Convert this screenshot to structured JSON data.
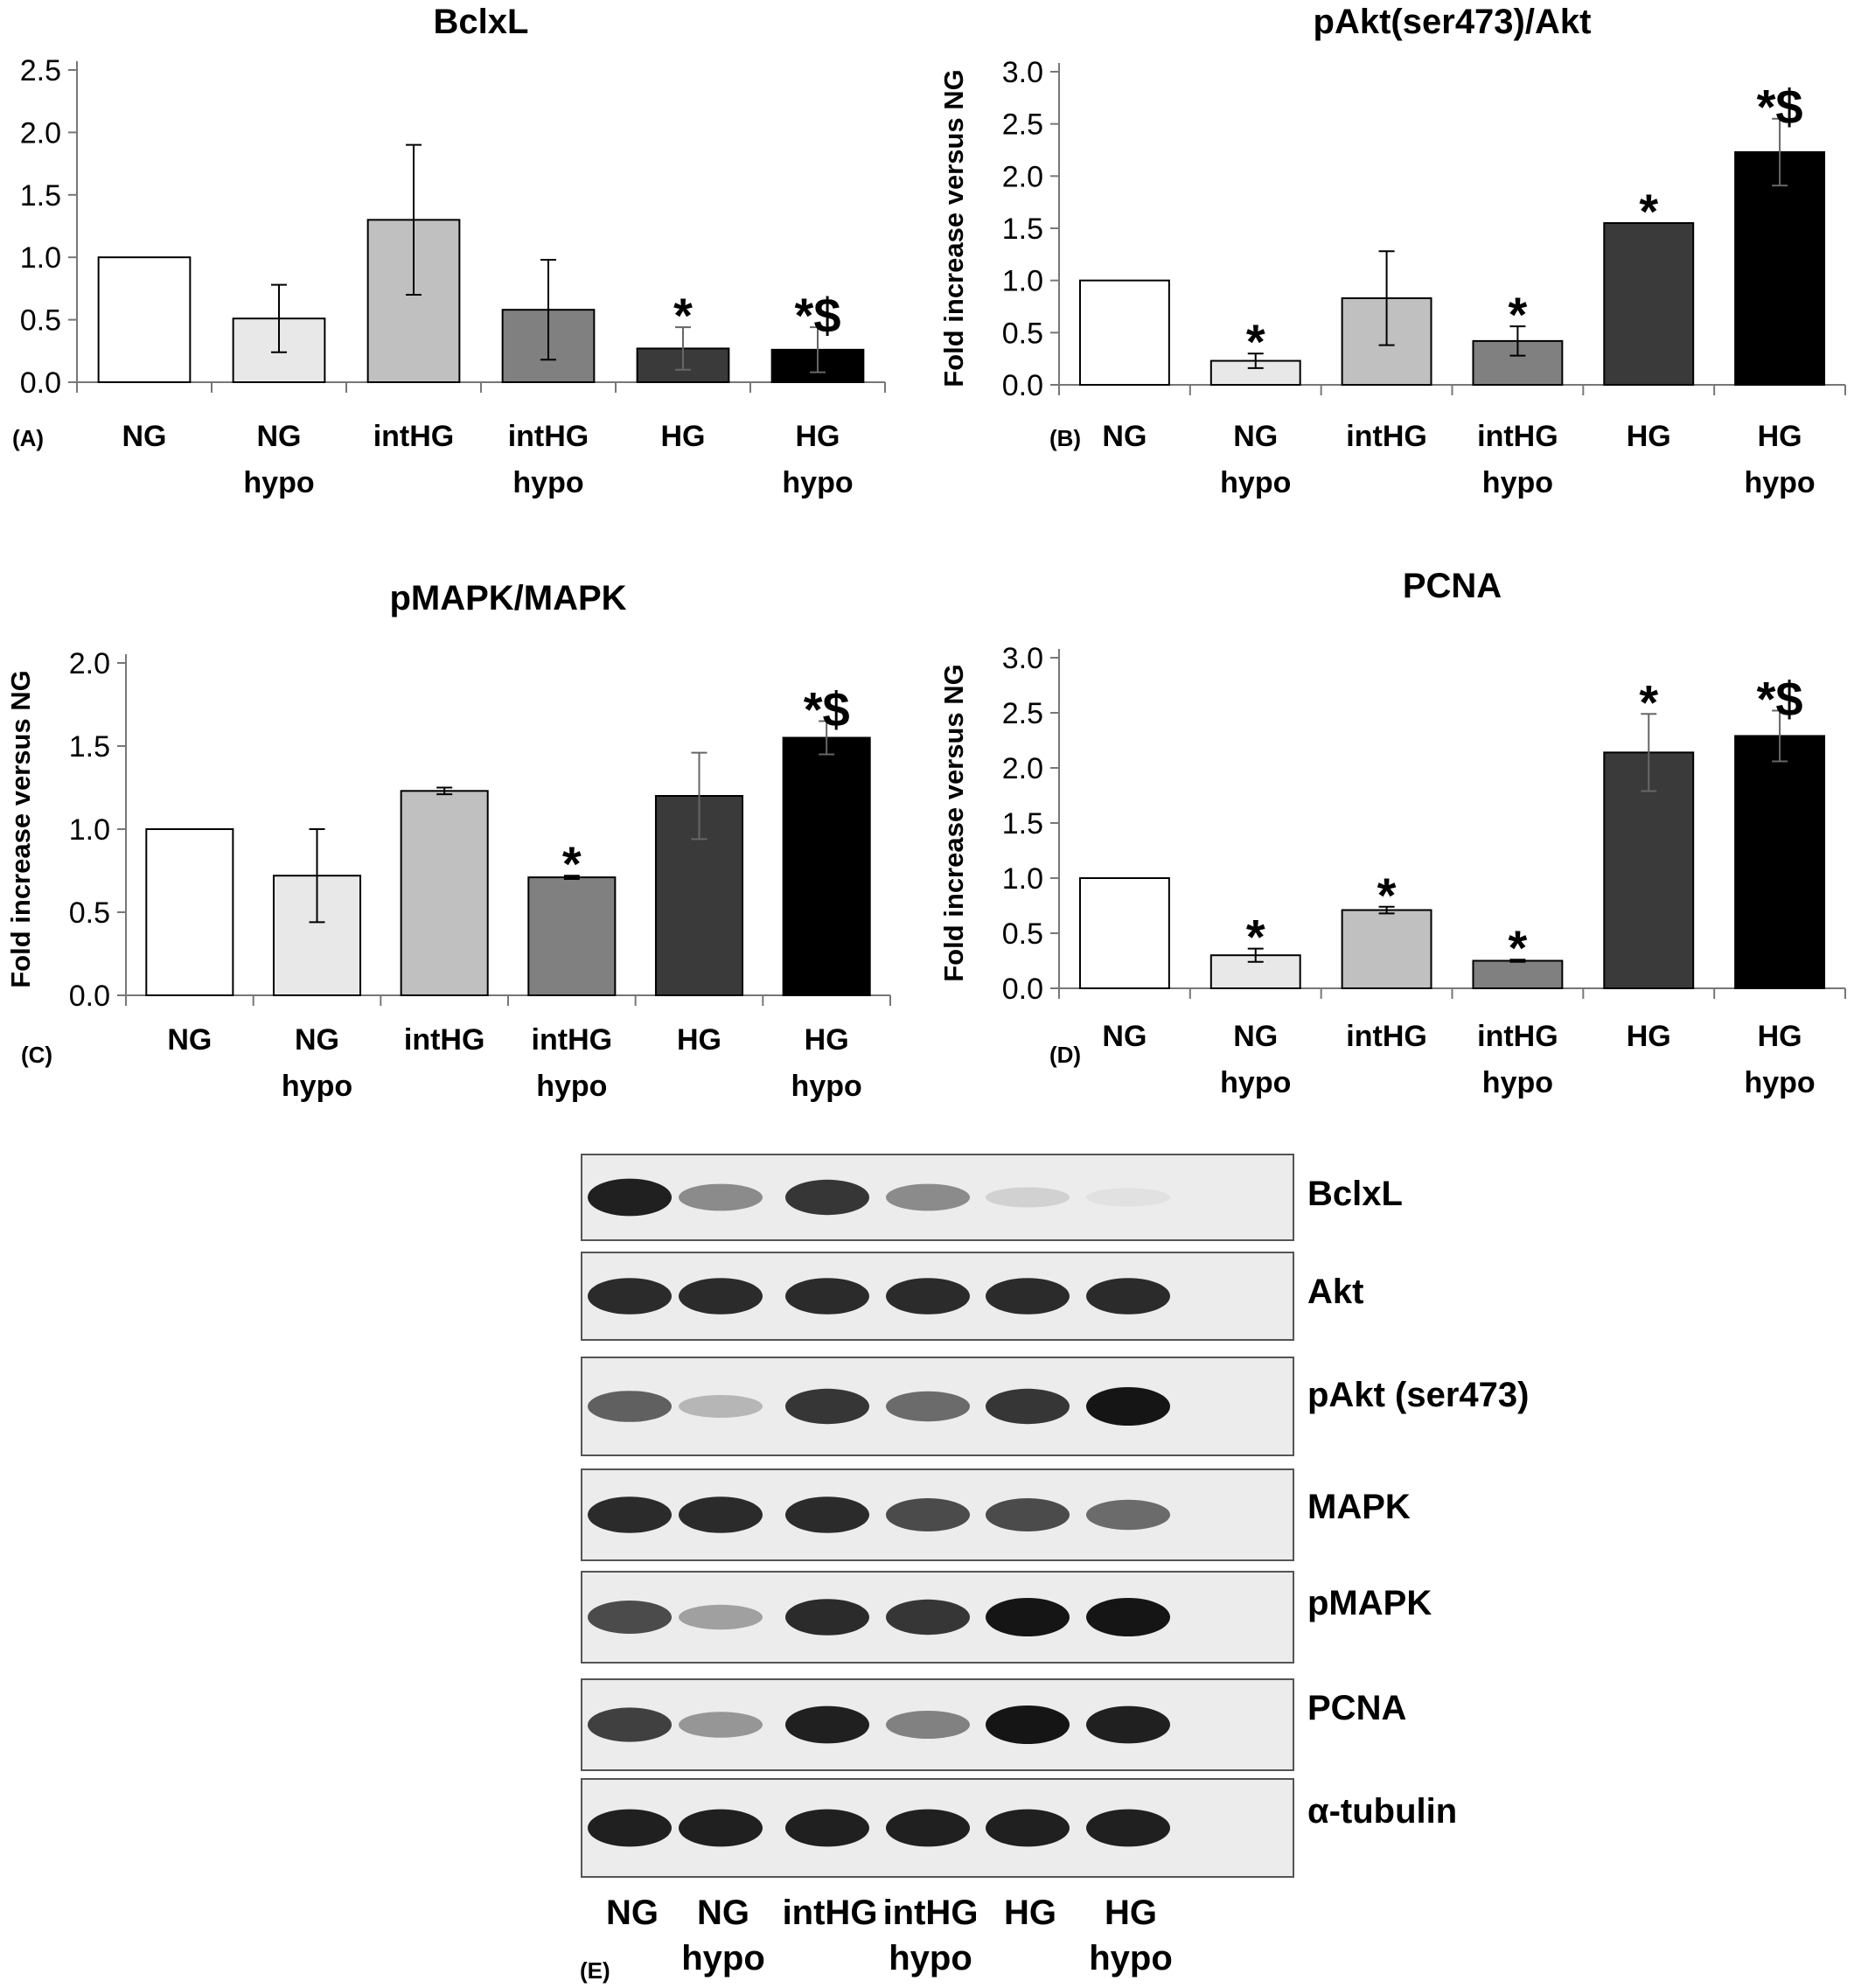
{
  "colors": [
    "#ffffff",
    "#e8e8e8",
    "#c0c0c0",
    "#808080",
    "#3a3a3a",
    "#000000"
  ],
  "chart_data": [
    {
      "panel": "(A)",
      "type": "bar",
      "title": "BclxL",
      "ylabel": "Fold increase versus NG",
      "ylim": [
        0,
        2.5
      ],
      "yticks": [
        "0.0",
        "0.5",
        "1.0",
        "1.5",
        "2.0",
        "2.5"
      ],
      "categories": [
        [
          "NG"
        ],
        [
          "NG",
          "hypo"
        ],
        [
          "intHG"
        ],
        [
          "intHG",
          "hypo"
        ],
        [
          "HG"
        ],
        [
          "HG",
          "hypo"
        ]
      ],
      "values": [
        1.0,
        0.51,
        1.3,
        0.58,
        0.27,
        0.26
      ],
      "errors": [
        0,
        0.27,
        0.6,
        0.4,
        0.17,
        0.18
      ],
      "marks": [
        "",
        "",
        "",
        "",
        "*",
        "*$"
      ]
    },
    {
      "panel": "(B)",
      "type": "bar",
      "title": "pAkt(ser473)/Akt",
      "ylabel": "Fold increase versus NG",
      "ylim": [
        0,
        3.0
      ],
      "yticks": [
        "0.0",
        "0.5",
        "1.0",
        "1.5",
        "2.0",
        "2.5",
        "3.0"
      ],
      "categories": [
        [
          "NG"
        ],
        [
          "NG",
          "hypo"
        ],
        [
          "intHG"
        ],
        [
          "intHG",
          "hypo"
        ],
        [
          "HG"
        ],
        [
          "HG",
          "hypo"
        ]
      ],
      "values": [
        1.0,
        0.23,
        0.83,
        0.42,
        1.55,
        2.23
      ],
      "errors": [
        0,
        0.07,
        0.45,
        0.14,
        0,
        0.32
      ],
      "marks": [
        "",
        "*",
        "",
        "*",
        "*",
        "*$"
      ]
    },
    {
      "panel": "(C)",
      "type": "bar",
      "title": "pMAPK/MAPK",
      "ylabel": "Fold increase versus NG",
      "ylim": [
        0,
        2.0
      ],
      "yticks": [
        "0.0",
        "0.5",
        "1.0",
        "1.5",
        "2.0"
      ],
      "categories": [
        [
          "NG"
        ],
        [
          "NG",
          "hypo"
        ],
        [
          "intHG"
        ],
        [
          "intHG",
          "hypo"
        ],
        [
          "HG"
        ],
        [
          "HG",
          "hypo"
        ]
      ],
      "values": [
        1.0,
        0.72,
        1.23,
        0.71,
        1.2,
        1.55
      ],
      "errors": [
        0,
        0.28,
        0.02,
        0.01,
        0.26,
        0.1
      ],
      "marks": [
        "",
        "",
        "",
        "*",
        "",
        "*$"
      ]
    },
    {
      "panel": "(D)",
      "type": "bar",
      "title": "PCNA",
      "ylabel": "Fold increase versus NG",
      "ylim": [
        0,
        3.0
      ],
      "yticks": [
        "0.0",
        "0.5",
        "1.0",
        "1.5",
        "2.0",
        "2.5",
        "3.0"
      ],
      "categories": [
        [
          "NG"
        ],
        [
          "NG",
          "hypo"
        ],
        [
          "intHG"
        ],
        [
          "intHG",
          "hypo"
        ],
        [
          "HG"
        ],
        [
          "HG",
          "hypo"
        ]
      ],
      "values": [
        1.0,
        0.3,
        0.71,
        0.25,
        2.14,
        2.29
      ],
      "errors": [
        0,
        0.06,
        0.03,
        0.01,
        0.35,
        0.23
      ],
      "marks": [
        "",
        "*",
        "*",
        "*",
        "*",
        "*$"
      ]
    }
  ],
  "blot": {
    "panel": "(E)",
    "bands": [
      "BclxL",
      "Akt",
      "pAkt (ser473)",
      "MAPK",
      "pMAPK",
      "PCNA",
      "α-tubulin"
    ],
    "lanes": [
      [
        "NG"
      ],
      [
        "NG",
        "hypo"
      ],
      [
        "intHG"
      ],
      [
        "intHG",
        "hypo"
      ],
      [
        "HG"
      ],
      [
        "HG",
        "hypo"
      ]
    ],
    "intensity": [
      [
        0.95,
        0.45,
        0.85,
        0.45,
        0.12,
        0.05
      ],
      [
        0.9,
        0.9,
        0.9,
        0.9,
        0.9,
        0.9
      ],
      [
        0.65,
        0.25,
        0.85,
        0.6,
        0.85,
        1.0
      ],
      [
        0.9,
        0.9,
        0.9,
        0.75,
        0.75,
        0.6
      ],
      [
        0.75,
        0.35,
        0.9,
        0.85,
        1.0,
        1.0
      ],
      [
        0.8,
        0.4,
        0.95,
        0.5,
        1.0,
        0.95
      ],
      [
        0.95,
        0.95,
        0.95,
        0.95,
        0.95,
        0.95
      ]
    ]
  }
}
